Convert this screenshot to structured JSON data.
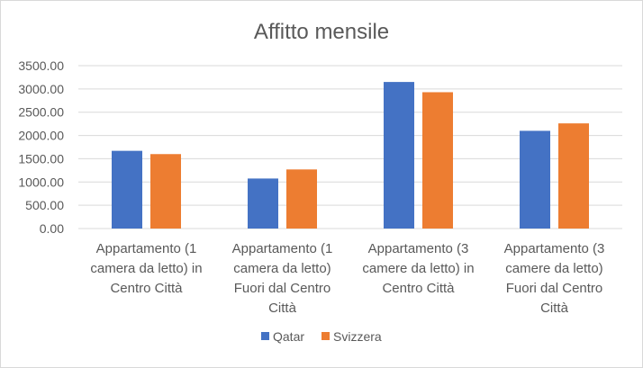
{
  "chart_data": {
    "type": "bar",
    "title": "Affitto mensile",
    "categories": [
      [
        "Appartamento (1",
        "camera da letto) in",
        "Centro Città"
      ],
      [
        "Appartamento (1",
        "camera da letto)",
        "Fuori dal Centro",
        "Città"
      ],
      [
        "Appartamento (3",
        "camere da letto) in",
        "Centro Città"
      ],
      [
        "Appartamento (3",
        "camere da letto)",
        "Fuori dal Centro",
        "Città"
      ]
    ],
    "series": [
      {
        "name": "Qatar",
        "color": "#4472C4",
        "values": [
          1670,
          1075,
          3150,
          2100
        ]
      },
      {
        "name": "Svizzera",
        "color": "#ED7D31",
        "values": [
          1600,
          1270,
          2930,
          2260
        ]
      }
    ],
    "ylim": [
      0,
      3500
    ],
    "yticks": [
      "0.00",
      "500.00",
      "1000.00",
      "1500.00",
      "2000.00",
      "2500.00",
      "3000.00",
      "3500.00"
    ],
    "grid": true,
    "gridcolor": "#d9d9d9",
    "legend": "bottom"
  }
}
